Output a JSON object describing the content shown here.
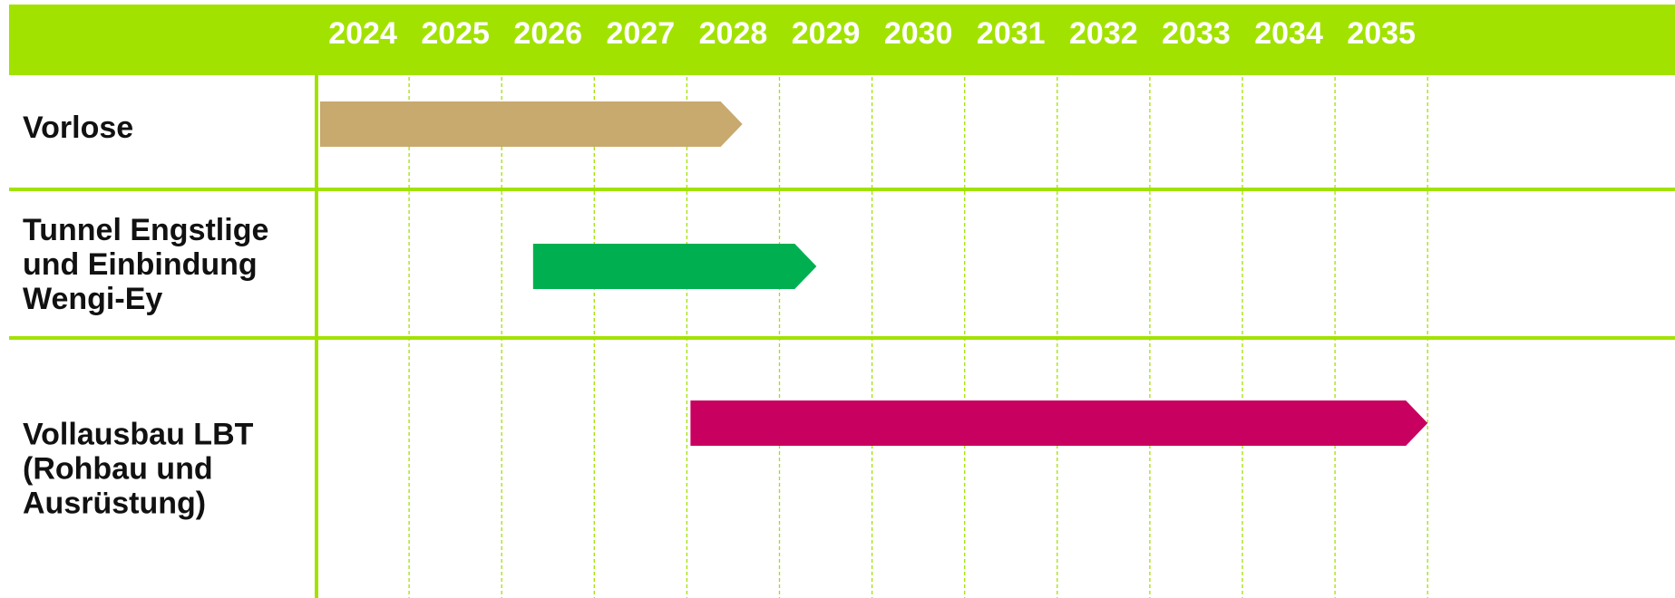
{
  "chart_data": {
    "type": "gantt",
    "years": [
      "2024",
      "2025",
      "2026",
      "2027",
      "2028",
      "2029",
      "2030",
      "2031",
      "2032",
      "2033",
      "2034",
      "2035"
    ],
    "tasks": [
      {
        "label_lines": [
          "Vorlose"
        ],
        "start": 2024.0,
        "end": 2028.6,
        "color": "#C8A96E"
      },
      {
        "label_lines": [
          "Tunnel Engstlige",
          "und Einbindung",
          "Wengi-Ey"
        ],
        "start": 2026.3,
        "end": 2029.4,
        "color": "#00B050"
      },
      {
        "label_lines": [
          "Vollausbau LBT",
          "(Rohbau und",
          "Ausrüstung)"
        ],
        "start": 2028.0,
        "end": 2036.0,
        "color": "#C8005F"
      }
    ],
    "colors": {
      "header": "#A2E200",
      "grid": "#A2E200"
    }
  }
}
